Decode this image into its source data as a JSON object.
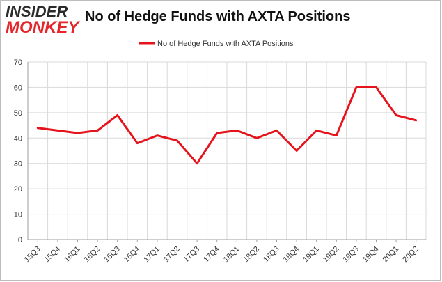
{
  "logo": {
    "line1": "INSIDER",
    "line2": "MONKEY"
  },
  "colors": {
    "series": "#e5131b",
    "grid": "#d9d9d9",
    "axis": "#9e9e9e",
    "text": "#333333"
  },
  "chart_data": {
    "type": "line",
    "title": "No of Hedge Funds with AXTA Positions",
    "xlabel": "",
    "ylabel": "",
    "ylim": [
      0,
      70
    ],
    "yticks": [
      0,
      10,
      20,
      30,
      40,
      50,
      60,
      70
    ],
    "grid": true,
    "legend_position": "top-center",
    "categories": [
      "15Q3",
      "15Q4",
      "16Q1",
      "16Q2",
      "16Q3",
      "16Q4",
      "17Q1",
      "17Q2",
      "17Q3",
      "17Q4",
      "18Q1",
      "18Q2",
      "18Q3",
      "18Q4",
      "19Q1",
      "19Q2",
      "19Q3",
      "19Q4",
      "20Q1",
      "20Q2"
    ],
    "series": [
      {
        "name": "No of Hedge Funds with AXTA Positions",
        "values": [
          44,
          43,
          42,
          43,
          49,
          38,
          41,
          39,
          30,
          42,
          43,
          40,
          43,
          35,
          43,
          41,
          60,
          60,
          49,
          47
        ]
      }
    ]
  }
}
